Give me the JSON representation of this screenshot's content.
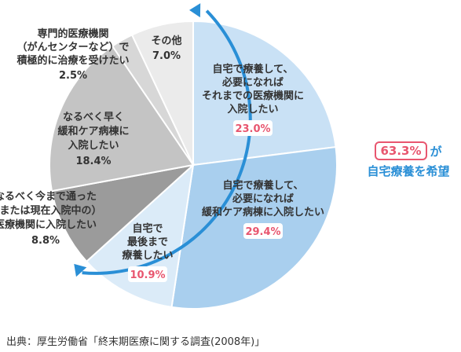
{
  "chart_data": {
    "type": "pie",
    "slices": [
      {
        "label_lines": [
          "自宅で療養して、",
          "必要になれば",
          "それまでの医療機関に",
          "入院したい"
        ],
        "value": 23.0,
        "value_text": "23.0%",
        "color": "#c9e1f5",
        "group": "home"
      },
      {
        "label_lines": [
          "自宅で療養して、",
          "必要になれば",
          "緩和ケア病棟に入院したい"
        ],
        "value": 29.4,
        "value_text": "29.4%",
        "color": "#a9cfee",
        "group": "home"
      },
      {
        "label_lines": [
          "自宅で",
          "最後まで",
          "療養したい"
        ],
        "value": 10.9,
        "value_text": "10.9%",
        "color": "#dbebf8",
        "group": "home"
      },
      {
        "label_lines": [
          "なるべく今まで通った",
          "（または現在入院中の）",
          "医療機関に入院したい"
        ],
        "value": 8.8,
        "value_text": "8.8%",
        "color": "#9b9b9b",
        "group": "other"
      },
      {
        "label_lines": [
          "なるべく早く",
          "緩和ケア病棟に",
          "入院したい"
        ],
        "value": 18.4,
        "value_text": "18.4%",
        "color": "#c4c4c4",
        "group": "other"
      },
      {
        "label_lines": [
          "専門的医療機関",
          "（がんセンターなど）で",
          "積極的に治療を受けたい"
        ],
        "value": 2.5,
        "value_text": "2.5%",
        "color": "#d7d7d7",
        "group": "other"
      },
      {
        "label_lines": [
          "その他"
        ],
        "value": 7.0,
        "value_text": "7.0%",
        "color": "#ebebeb",
        "group": "other"
      }
    ],
    "start_angle_deg": 0,
    "direction": "clockwise",
    "highlight_color": "#e8566f",
    "arrow_color": "#2a8fd6"
  },
  "callout": {
    "pct": "63.3%",
    "ga": "が",
    "text": "自宅療養を希望"
  },
  "source": "出典：厚生労働省「終末期医療に関する調査(2008年)」"
}
